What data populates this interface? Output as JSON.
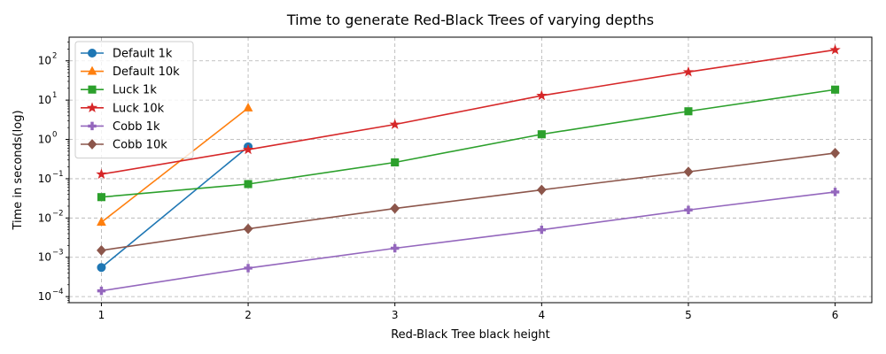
{
  "chart_data": {
    "type": "line",
    "title": "Time to generate Red-Black Trees of varying depths",
    "xlabel": "Red-Black Tree black height",
    "ylabel": "Time in seconds(log)",
    "yscale": "log",
    "xlim": [
      0.78,
      6.25
    ],
    "ylim": [
      7e-05,
      400
    ],
    "x_ticks": [
      {
        "value": 1,
        "label": "1"
      },
      {
        "value": 2,
        "label": "2"
      },
      {
        "value": 3,
        "label": "3"
      },
      {
        "value": 4,
        "label": "4"
      },
      {
        "value": 5,
        "label": "5"
      },
      {
        "value": 6,
        "label": "6"
      }
    ],
    "y_ticks": [
      {
        "value": 0.0001,
        "base": "10",
        "exp": "−4"
      },
      {
        "value": 0.001,
        "base": "10",
        "exp": "−3"
      },
      {
        "value": 0.01,
        "base": "10",
        "exp": "−2"
      },
      {
        "value": 0.1,
        "base": "10",
        "exp": "−1"
      },
      {
        "value": 1,
        "base": "10",
        "exp": "0"
      },
      {
        "value": 10,
        "base": "10",
        "exp": "1"
      },
      {
        "value": 100,
        "base": "10",
        "exp": "2"
      }
    ],
    "grid": true,
    "legend_position": "top-left",
    "series": [
      {
        "name": "Default 1k",
        "color": "#1f77b4",
        "marker": "circle",
        "x": [
          1,
          2
        ],
        "y": [
          0.00055,
          0.65
        ]
      },
      {
        "name": "Default 10k",
        "color": "#ff7f0e",
        "marker": "triangle",
        "x": [
          1,
          2
        ],
        "y": [
          0.0078,
          6.3
        ]
      },
      {
        "name": "Luck 1k",
        "color": "#2ca02c",
        "marker": "square",
        "x": [
          1,
          2,
          3,
          4,
          5,
          6
        ],
        "y": [
          0.034,
          0.073,
          0.26,
          1.35,
          5.2,
          18.5
        ]
      },
      {
        "name": "Luck 10k",
        "color": "#d62728",
        "marker": "star",
        "x": [
          1,
          2,
          3,
          4,
          5,
          6
        ],
        "y": [
          0.13,
          0.55,
          2.4,
          13,
          52,
          190
        ]
      },
      {
        "name": "Cobb 1k",
        "color": "#9467bd",
        "marker": "plus",
        "x": [
          1,
          2,
          3,
          4,
          5,
          6
        ],
        "y": [
          0.00014,
          0.00053,
          0.0017,
          0.005,
          0.016,
          0.046
        ]
      },
      {
        "name": "Cobb 10k",
        "color": "#8c564b",
        "marker": "diamond",
        "x": [
          1,
          2,
          3,
          4,
          5,
          6
        ],
        "y": [
          0.0015,
          0.0053,
          0.0175,
          0.052,
          0.15,
          0.45
        ]
      }
    ]
  }
}
